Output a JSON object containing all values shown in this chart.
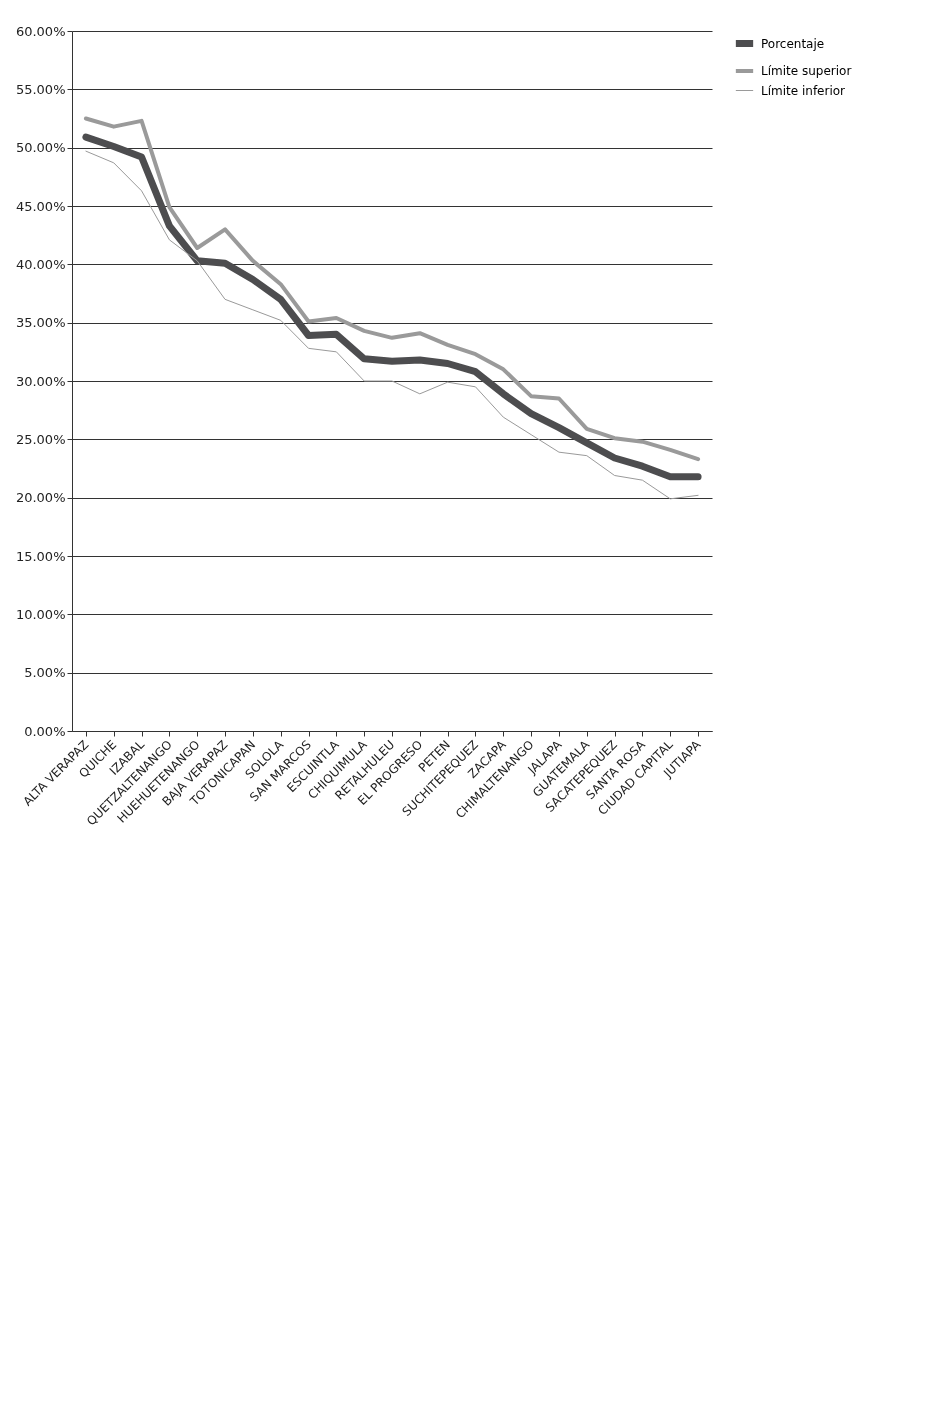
{
  "chart_data": {
    "type": "line",
    "categories": [
      "ALTA VERAPAZ",
      "QUICHE",
      "IZABAL",
      "QUETZALTENANGO",
      "HUEHUETENANGO",
      "BAJA VERAPAZ",
      "TOTONICAPAN",
      "SOLOLA",
      "SAN MARCOS",
      "ESCUINTLA",
      "CHIQUIMULA",
      "RETALHULEU",
      "EL PROGRESO",
      "PETEN",
      "SUCHITEPEQUEZ",
      "ZACAPA",
      "CHIMALTENANGO",
      "JALAPA",
      "GUATEMALA",
      "SACATEPEQUEZ",
      "SANTA ROSA",
      "CIUDAD CAPITAL",
      "JUTIAPA"
    ],
    "series": [
      {
        "name": "Porcentaje",
        "color": "#4d4d4f",
        "values": [
          50.9,
          50.1,
          49.2,
          43.3,
          40.3,
          40.1,
          38.7,
          37.0,
          33.9,
          34.0,
          31.9,
          31.7,
          31.8,
          31.5,
          30.8,
          28.9,
          27.2,
          26.0,
          24.7,
          23.4,
          22.7,
          21.8,
          21.8
        ]
      },
      {
        "name": "Límite superior",
        "color": "#9a9a9a",
        "values": [
          52.5,
          51.8,
          52.3,
          44.9,
          41.4,
          43.0,
          40.3,
          38.3,
          35.1,
          35.4,
          34.3,
          33.7,
          34.1,
          33.1,
          32.3,
          31.0,
          28.7,
          28.5,
          25.9,
          25.1,
          24.8,
          24.1,
          23.3
        ]
      },
      {
        "name": "Límite inferior",
        "color": "#9a9a9a",
        "values": [
          49.7,
          48.7,
          46.3,
          42.1,
          40.3,
          37.0,
          36.1,
          35.2,
          32.8,
          32.5,
          30.0,
          30.0,
          28.9,
          29.9,
          29.5,
          26.9,
          25.4,
          23.9,
          23.6,
          21.9,
          21.5,
          19.9,
          20.2
        ]
      }
    ],
    "ylim": [
      0,
      60
    ],
    "yticks": [
      {
        "value": 0,
        "label": "0.00%"
      },
      {
        "value": 5,
        "label": "5.00%"
      },
      {
        "value": 10,
        "label": "10.00%"
      },
      {
        "value": 15,
        "label": "15.00%"
      },
      {
        "value": 20,
        "label": "20.00%"
      },
      {
        "value": 25,
        "label": "25.00%"
      },
      {
        "value": 30,
        "label": "30.00%"
      },
      {
        "value": 35,
        "label": "35.00%"
      },
      {
        "value": 40,
        "label": "40.00%"
      },
      {
        "value": 45,
        "label": "45.00%"
      },
      {
        "value": 50,
        "label": "50.00%"
      },
      {
        "value": 55,
        "label": "55.00%"
      },
      {
        "value": 60,
        "label": "60.00%"
      }
    ],
    "grid": "y",
    "legend": "right",
    "marker": "none",
    "line_style": "solid"
  }
}
